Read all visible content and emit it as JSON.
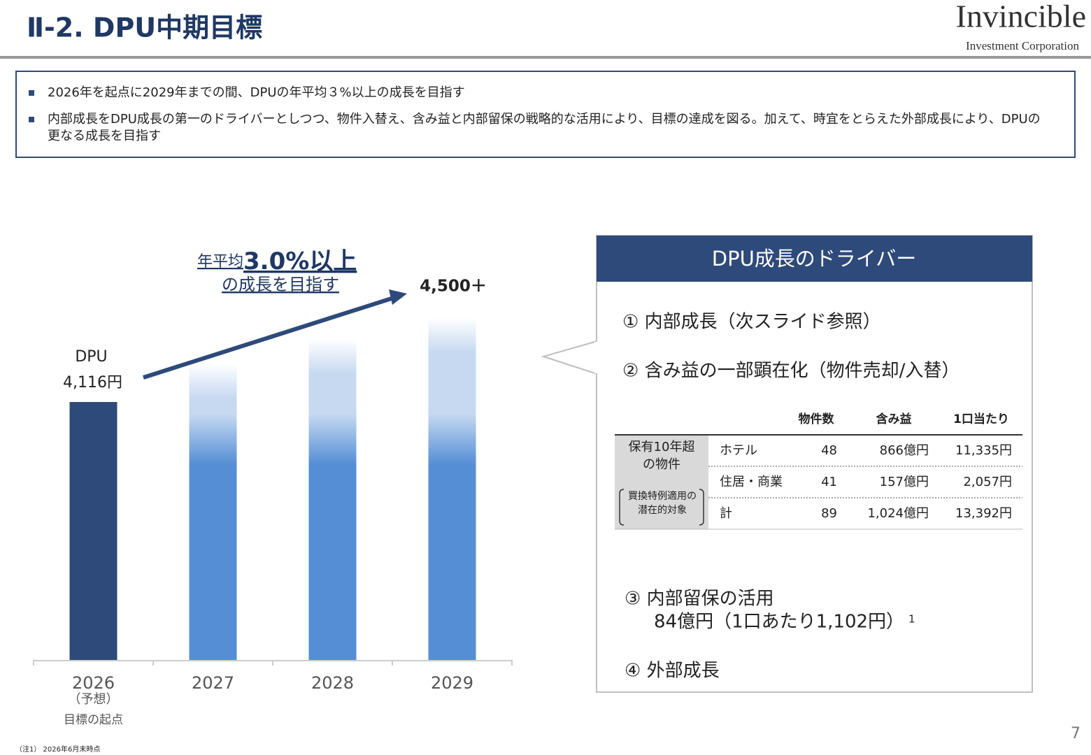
{
  "header": {
    "title": "Ⅱ-2. DPU中期目標",
    "logo": "Invincible",
    "logo_sub": "Investment Corporation"
  },
  "bullets": [
    [
      "2026年を起点に2029年までの間、DPUの年平均３%以上の成長を目指す"
    ],
    [
      "内部成長をDPU成長の第一のドライバーとしつつ、物件入替え、含み益と内部留保の戦略的な活用により、目標の達成を図る。加えて、時宜をとらえた外部成長により、DPUの",
      "更なる成長を目指す"
    ]
  ],
  "chart_data": {
    "type": "bar",
    "categories": [
      "2026",
      "2027",
      "2028",
      "2029"
    ],
    "values": [
      4116,
      4730,
      5120,
      5460
    ],
    "value_labels": [
      "4,116円",
      null,
      null,
      null
    ],
    "colors": [
      "#2e4a7a",
      "#558ed5",
      "#558ed5",
      "#558ed5"
    ],
    "ylim": [
      0,
      5500
    ],
    "series_label": "DPU",
    "category_notes": [
      "（予想）",
      "目標の起点"
    ],
    "annotations": {
      "growth_prefix": "年平均",
      "growth_rate": "3.0%以上",
      "growth_suffix": "の成長を目指す",
      "target": "4,500＋"
    }
  },
  "drivers": {
    "title": "DPU成長のドライバー",
    "items": [
      "① 内部成長（次スライド参照）",
      "② 含み益の一部顕在化（物件売却/入替）",
      "③ 内部留保の活用",
      "④ 外部成長"
    ],
    "item3_detail": "84億円（1口あたり1,102円）",
    "item3_note": "1",
    "table": {
      "columns": [
        "物件数",
        "含み益",
        "1口当たり"
      ],
      "group": [
        "保有10年超",
        "の物件"
      ],
      "bracket": [
        "買換特例適用の",
        "潜在的対象"
      ],
      "rows": [
        [
          "ホテル",
          "48",
          "866億円",
          "11,335円"
        ],
        [
          "住居・商業",
          "41",
          "157億円",
          "2,057円"
        ],
        [
          "計",
          "89",
          "1,024億円",
          "13,392円"
        ]
      ]
    }
  },
  "footnote": "（注1） 2026年6月末時点",
  "page": "7"
}
